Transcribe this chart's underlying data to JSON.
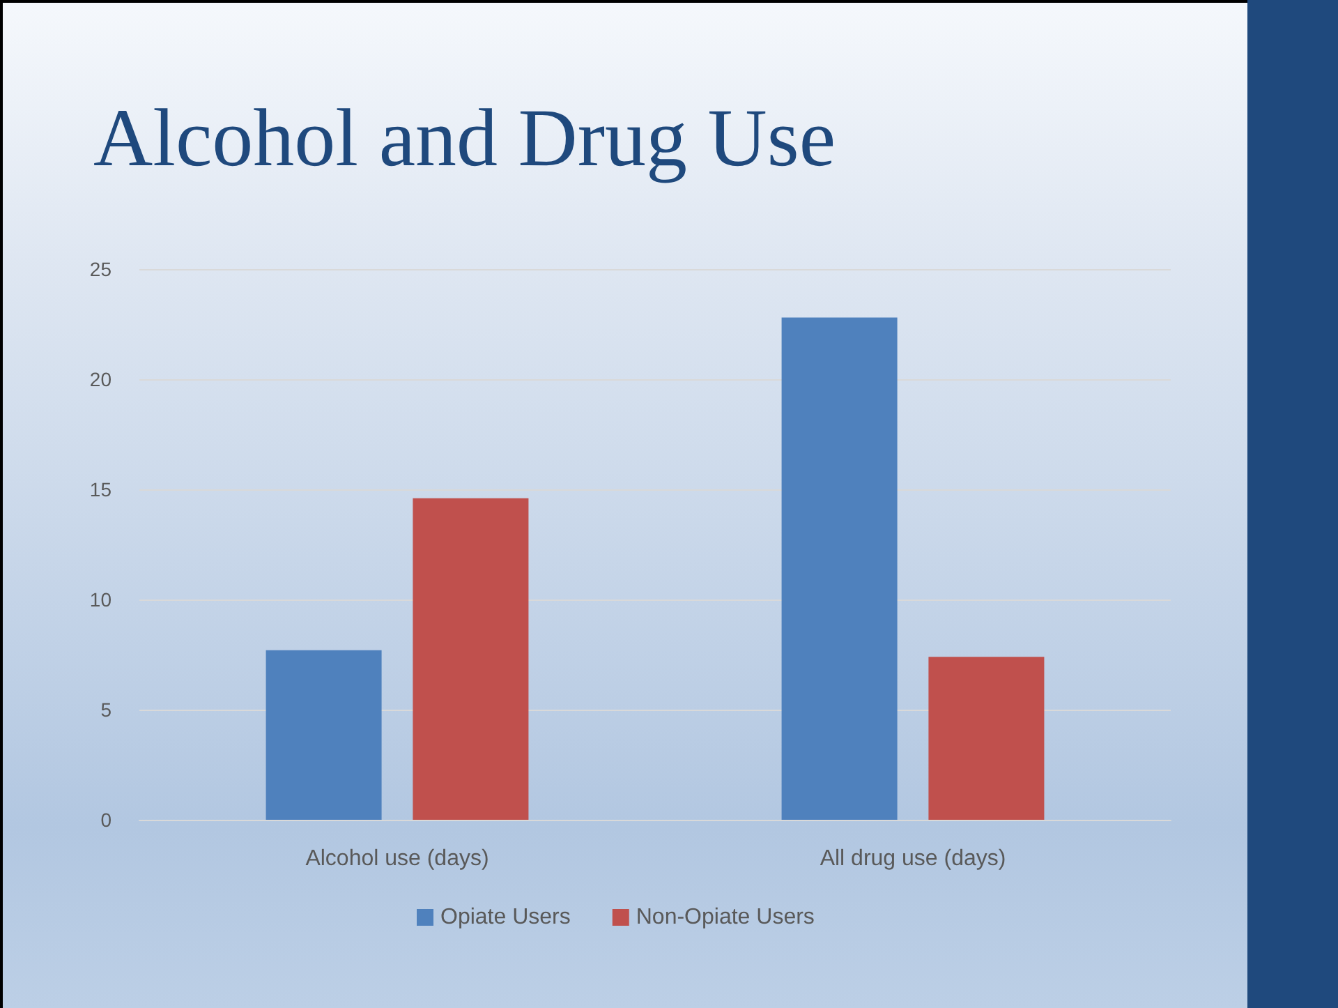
{
  "chart_data": {
    "type": "bar",
    "title": "Alcohol and Drug Use",
    "categories": [
      "Alcohol use (days)",
      "All drug use (days)"
    ],
    "series": [
      {
        "name": "Opiate Users",
        "color": "#4f81bd",
        "values": [
          7.7,
          22.8
        ]
      },
      {
        "name": "Non-Opiate Users",
        "color": "#c0504d",
        "values": [
          14.6,
          7.4
        ]
      }
    ],
    "ylim": [
      0,
      25
    ],
    "yticks": [
      0,
      5,
      10,
      15,
      20,
      25
    ],
    "grid": "y",
    "legend": "bottom"
  }
}
